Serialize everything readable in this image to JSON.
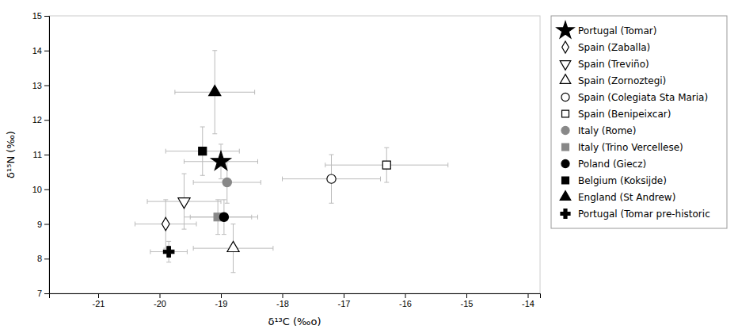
{
  "chart_data": {
    "type": "scatter",
    "x_label": "δ¹³C (‰o)",
    "y_label": "δ¹⁵N (‰)",
    "xlim": [
      -21.8,
      -13.8
    ],
    "ylim": [
      7,
      15
    ],
    "xticks": [
      -21,
      -20,
      -19,
      -18,
      -17,
      -16,
      -15,
      -14
    ],
    "yticks": [
      7,
      8,
      9,
      10,
      11,
      12,
      13,
      14,
      15
    ],
    "grid": false,
    "legend": "right",
    "series": [
      {
        "name": "Portugal (Tomar)",
        "color": "black",
        "marker": "star",
        "x": [
          -19.0
        ],
        "values": [
          10.8
        ],
        "xerr": [
          0.6
        ],
        "yerr": [
          0.5
        ]
      },
      {
        "name": "Spain (Zaballa)",
        "color": "black",
        "marker": "diamond-open",
        "x": [
          -19.9
        ],
        "values": [
          9.0
        ],
        "xerr": [
          0.5
        ],
        "yerr": [
          0.7
        ]
      },
      {
        "name": "Spain (Treviño)",
        "color": "black",
        "marker": "triangle-down-open",
        "x": [
          -19.6
        ],
        "values": [
          9.65
        ],
        "xerr": [
          0.6
        ],
        "yerr": [
          0.8
        ]
      },
      {
        "name": "Spain (Zornoztegi)",
        "color": "black",
        "marker": "triangle-up-open",
        "x": [
          -18.8
        ],
        "values": [
          8.3
        ],
        "xerr": [
          0.65
        ],
        "yerr": [
          0.7
        ]
      },
      {
        "name": "Spain (Colegiata Sta Maria)",
        "color": "black",
        "marker": "circle-open",
        "x": [
          -17.2
        ],
        "values": [
          10.3
        ],
        "xerr": [
          0.8
        ],
        "yerr": [
          0.7
        ]
      },
      {
        "name": "Spain (Benipeixcar)",
        "color": "black",
        "marker": "square-open",
        "x": [
          -16.3
        ],
        "values": [
          10.7
        ],
        "xerr": [
          1.0
        ],
        "yerr": [
          0.5
        ]
      },
      {
        "name": "Italy (Rome)",
        "color": "#888888",
        "marker": "circle",
        "x": [
          -18.9
        ],
        "values": [
          10.2
        ],
        "xerr": [
          0.55
        ],
        "yerr": [
          0.6
        ]
      },
      {
        "name": "Italy (Trino Vercellese)",
        "color": "#888888",
        "marker": "square",
        "x": [
          -19.05
        ],
        "values": [
          9.2
        ],
        "xerr": [
          0.55
        ],
        "yerr": [
          0.5
        ]
      },
      {
        "name": "Poland (Giecz)",
        "color": "black",
        "marker": "circle",
        "x": [
          -18.95
        ],
        "values": [
          9.2
        ],
        "xerr": [
          0.55
        ],
        "yerr": [
          0.5
        ]
      },
      {
        "name": "Belgium (Koksijde)",
        "color": "black",
        "marker": "square",
        "x": [
          -19.3
        ],
        "values": [
          11.1
        ],
        "xerr": [
          0.6
        ],
        "yerr": [
          0.7
        ]
      },
      {
        "name": "England (St Andrew)",
        "color": "black",
        "marker": "triangle-up",
        "x": [
          -19.1
        ],
        "values": [
          12.8
        ],
        "xerr": [
          0.65
        ],
        "yerr": [
          1.2
        ]
      },
      {
        "name": "Portugal (Tomar pre-historic",
        "color": "black",
        "marker": "plus",
        "x": [
          -19.85
        ],
        "values": [
          8.2
        ],
        "xerr": [
          0.3
        ],
        "yerr": [
          0.3
        ]
      }
    ]
  }
}
